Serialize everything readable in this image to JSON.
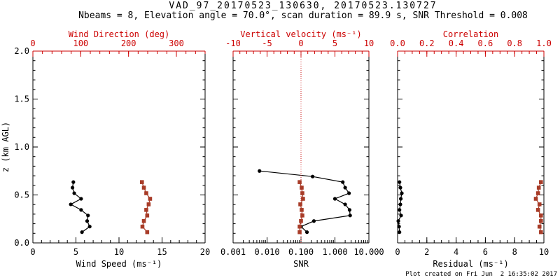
{
  "chart_data": {
    "type": "line",
    "title": "VAD_97_20170523_130630, 20170523.130727",
    "subtitle": "Nbeams = 8, Elevation angle = 70.0°, scan duration = 89.9 s, SNR Threshold = 0.008",
    "footer": "Plot created on Fri Jun  2 16:35:02 2017",
    "colors": {
      "axis_red": "#cc0000",
      "data_red": "#a83c28",
      "black": "#000000"
    },
    "y_axis": {
      "label": "z (km AGL)",
      "range": [
        0.0,
        2.0
      ],
      "major_ticks": [
        "0.0",
        "0.5",
        "1.0",
        "1.5",
        "2.0"
      ],
      "minor_step": 0.1
    },
    "grid": "off",
    "legend": "none",
    "panels": [
      {
        "id": "wind",
        "bottom_axis": {
          "label": "Wind Speed (ms⁻¹)",
          "color": "#000000",
          "range": [
            0,
            20
          ],
          "major_ticks": [
            "0",
            "5",
            "10",
            "15",
            "20"
          ],
          "minor_step": 1
        },
        "top_axis": {
          "label": "Wind Direction (deg)",
          "color": "#cc0000",
          "range": [
            0,
            360
          ],
          "major_ticks": [
            "0",
            "100",
            "200",
            "300"
          ],
          "minor_step": 20
        },
        "series": [
          {
            "name": "wind_speed",
            "axis": "bottom",
            "color": "#000000",
            "marker": "circle",
            "z_km": [
              0.112,
              0.17,
              0.228,
              0.286,
              0.344,
              0.402,
              0.46,
              0.518,
              0.576,
              0.634
            ],
            "values": [
              5.7,
              6.6,
              6.3,
              6.4,
              5.6,
              4.4,
              5.6,
              4.8,
              4.6,
              4.7
            ]
          },
          {
            "name": "wind_direction",
            "axis": "top",
            "color": "#a83c28",
            "marker": "square",
            "z_km": [
              0.112,
              0.17,
              0.228,
              0.286,
              0.344,
              0.402,
              0.46,
              0.518,
              0.576,
              0.634
            ],
            "values": [
              239,
              229,
              232,
              239,
              237,
              242,
              245,
              237,
              232,
              228
            ]
          }
        ]
      },
      {
        "id": "snr",
        "bottom_axis": {
          "label": "SNR",
          "color": "#000000",
          "scale": "log",
          "range": [
            0.001,
            10
          ],
          "major_ticks": [
            "0.001",
            "0.010",
            "0.100",
            "1.000",
            "10.000"
          ]
        },
        "top_axis": {
          "label": "Vertical velocity (ms⁻¹)",
          "color": "#cc0000",
          "range": [
            -10,
            10
          ],
          "major_ticks": [
            "-10",
            "-5",
            "0",
            "5",
            "10"
          ],
          "minor_step": 1
        },
        "ref_line": {
          "axis": "top",
          "value": 0,
          "color": "#cc2222",
          "style": "dotted"
        },
        "series": [
          {
            "name": "snr",
            "axis": "bottom",
            "color": "#000000",
            "marker": "circle",
            "z_km": [
              0.112,
              0.17,
              0.228,
              0.286,
              0.344,
              0.402,
              0.46,
              0.518,
              0.576,
              0.634,
              0.692,
              0.75
            ],
            "values": [
              0.15,
              0.1,
              0.24,
              2.8,
              2.7,
              2.0,
              1.0,
              2.6,
              2.0,
              1.7,
              0.22,
              0.006
            ]
          },
          {
            "name": "vertical_velocity",
            "axis": "top",
            "color": "#a83c28",
            "marker": "square",
            "z_km": [
              0.112,
              0.17,
              0.228,
              0.286,
              0.344,
              0.402,
              0.46,
              0.518,
              0.576,
              0.634
            ],
            "values": [
              -0.2,
              -0.2,
              0.0,
              0.2,
              0.1,
              -0.1,
              0.3,
              0.2,
              0.1,
              -0.2
            ]
          }
        ]
      },
      {
        "id": "residual",
        "bottom_axis": {
          "label": "Residual (ms⁻¹)",
          "color": "#000000",
          "range": [
            0,
            10
          ],
          "major_ticks": [
            "0",
            "2",
            "4",
            "6",
            "8",
            "10"
          ],
          "minor_step": 0.5
        },
        "top_axis": {
          "label": "Correlation",
          "color": "#cc0000",
          "range": [
            0.0,
            1.0
          ],
          "major_ticks": [
            "0.0",
            "0.2",
            "0.4",
            "0.6",
            "0.8",
            "1.0"
          ],
          "minor_step": 0.05
        },
        "series": [
          {
            "name": "residual",
            "axis": "bottom",
            "color": "#000000",
            "marker": "circle",
            "z_km": [
              0.112,
              0.17,
              0.228,
              0.286,
              0.344,
              0.402,
              0.46,
              0.518,
              0.576,
              0.634
            ],
            "values": [
              0.13,
              0.1,
              0.05,
              0.24,
              0.13,
              0.19,
              0.22,
              0.29,
              0.19,
              0.13
            ]
          },
          {
            "name": "correlation",
            "axis": "top",
            "color": "#a83c28",
            "marker": "square",
            "z_km": [
              0.112,
              0.17,
              0.228,
              0.286,
              0.344,
              0.402,
              0.46,
              0.518,
              0.576,
              0.634
            ],
            "values": [
              0.98,
              0.97,
              0.98,
              0.98,
              0.96,
              0.97,
              0.945,
              0.96,
              0.965,
              0.98
            ]
          }
        ]
      }
    ]
  }
}
